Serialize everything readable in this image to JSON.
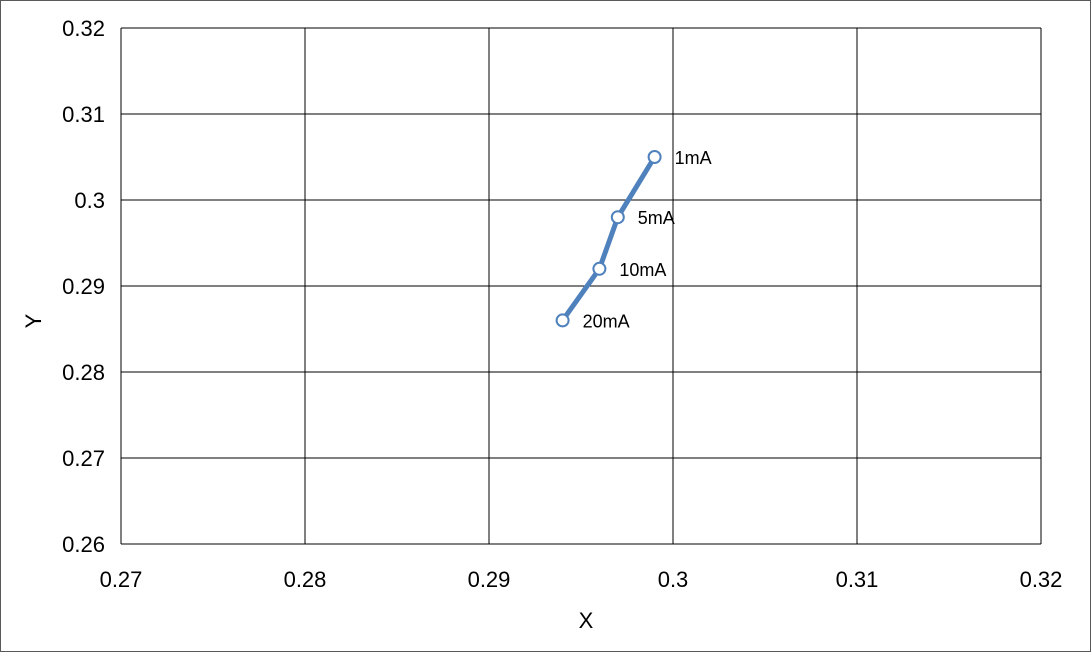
{
  "chart_data": {
    "type": "scatter",
    "title": "",
    "xlabel": "X",
    "ylabel": "Y",
    "xlim": [
      0.27,
      0.32
    ],
    "ylim": [
      0.26,
      0.32
    ],
    "x_ticks": [
      0.27,
      0.28,
      0.29,
      0.3,
      0.31,
      0.32
    ],
    "x_tick_labels": [
      "0.27",
      "0.28",
      "0.29",
      "0.3",
      "0.31",
      "0.32"
    ],
    "y_ticks": [
      0.26,
      0.27,
      0.28,
      0.29,
      0.3,
      0.31,
      0.32
    ],
    "y_tick_labels": [
      "0.26",
      "0.27",
      "0.28",
      "0.29",
      "0.3",
      "0.31",
      "0.32"
    ],
    "grid": true,
    "legend": "none",
    "series": [
      {
        "color": "#4f81bd",
        "connected": true,
        "marker": "open-circle",
        "points": [
          {
            "x": 0.299,
            "y": 0.305,
            "label": "1mA"
          },
          {
            "x": 0.297,
            "y": 0.298,
            "label": "5mA"
          },
          {
            "x": 0.296,
            "y": 0.292,
            "label": "10mA"
          },
          {
            "x": 0.294,
            "y": 0.286,
            "label": "20mA"
          }
        ]
      }
    ]
  }
}
